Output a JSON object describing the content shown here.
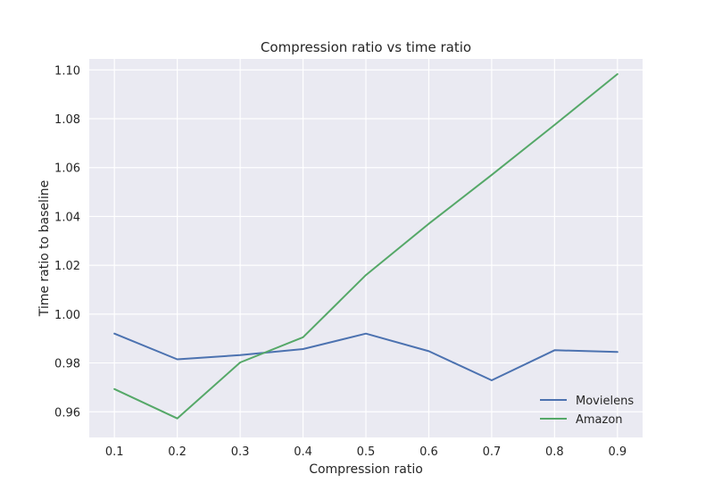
{
  "chart_data": {
    "type": "line",
    "title": "Compression ratio vs time ratio",
    "xlabel": "Compression ratio",
    "ylabel": "Time ratio to baseline",
    "x": [
      0.1,
      0.2,
      0.3,
      0.4,
      0.5,
      0.6,
      0.7,
      0.8,
      0.9
    ],
    "x_tick_labels": [
      "0.1",
      "0.2",
      "0.3",
      "0.4",
      "0.5",
      "0.6",
      "0.7",
      "0.8",
      "0.9"
    ],
    "y_ticks": [
      0.96,
      0.98,
      1.0,
      1.02,
      1.04,
      1.06,
      1.08,
      1.1
    ],
    "y_tick_labels": [
      "0.96",
      "0.98",
      "1.00",
      "1.02",
      "1.04",
      "1.06",
      "1.08",
      "1.10"
    ],
    "xlim": [
      0.06,
      0.94
    ],
    "ylim": [
      0.9495,
      1.1045
    ],
    "grid": true,
    "legend_position": "lower-right",
    "series": [
      {
        "name": "Movielens",
        "color": "#4c72b0",
        "values": [
          0.992,
          0.9815,
          0.9832,
          0.9857,
          0.992,
          0.9848,
          0.9729,
          0.9852,
          0.9845
        ]
      },
      {
        "name": "Amazon",
        "color": "#55a868",
        "values": [
          0.9693,
          0.9573,
          0.9802,
          0.9905,
          1.016,
          1.037,
          1.057,
          1.0775,
          1.0983
        ]
      }
    ],
    "colors": {
      "plot_background": "#eaeaf2",
      "grid": "#ffffff",
      "text": "#262626"
    }
  }
}
